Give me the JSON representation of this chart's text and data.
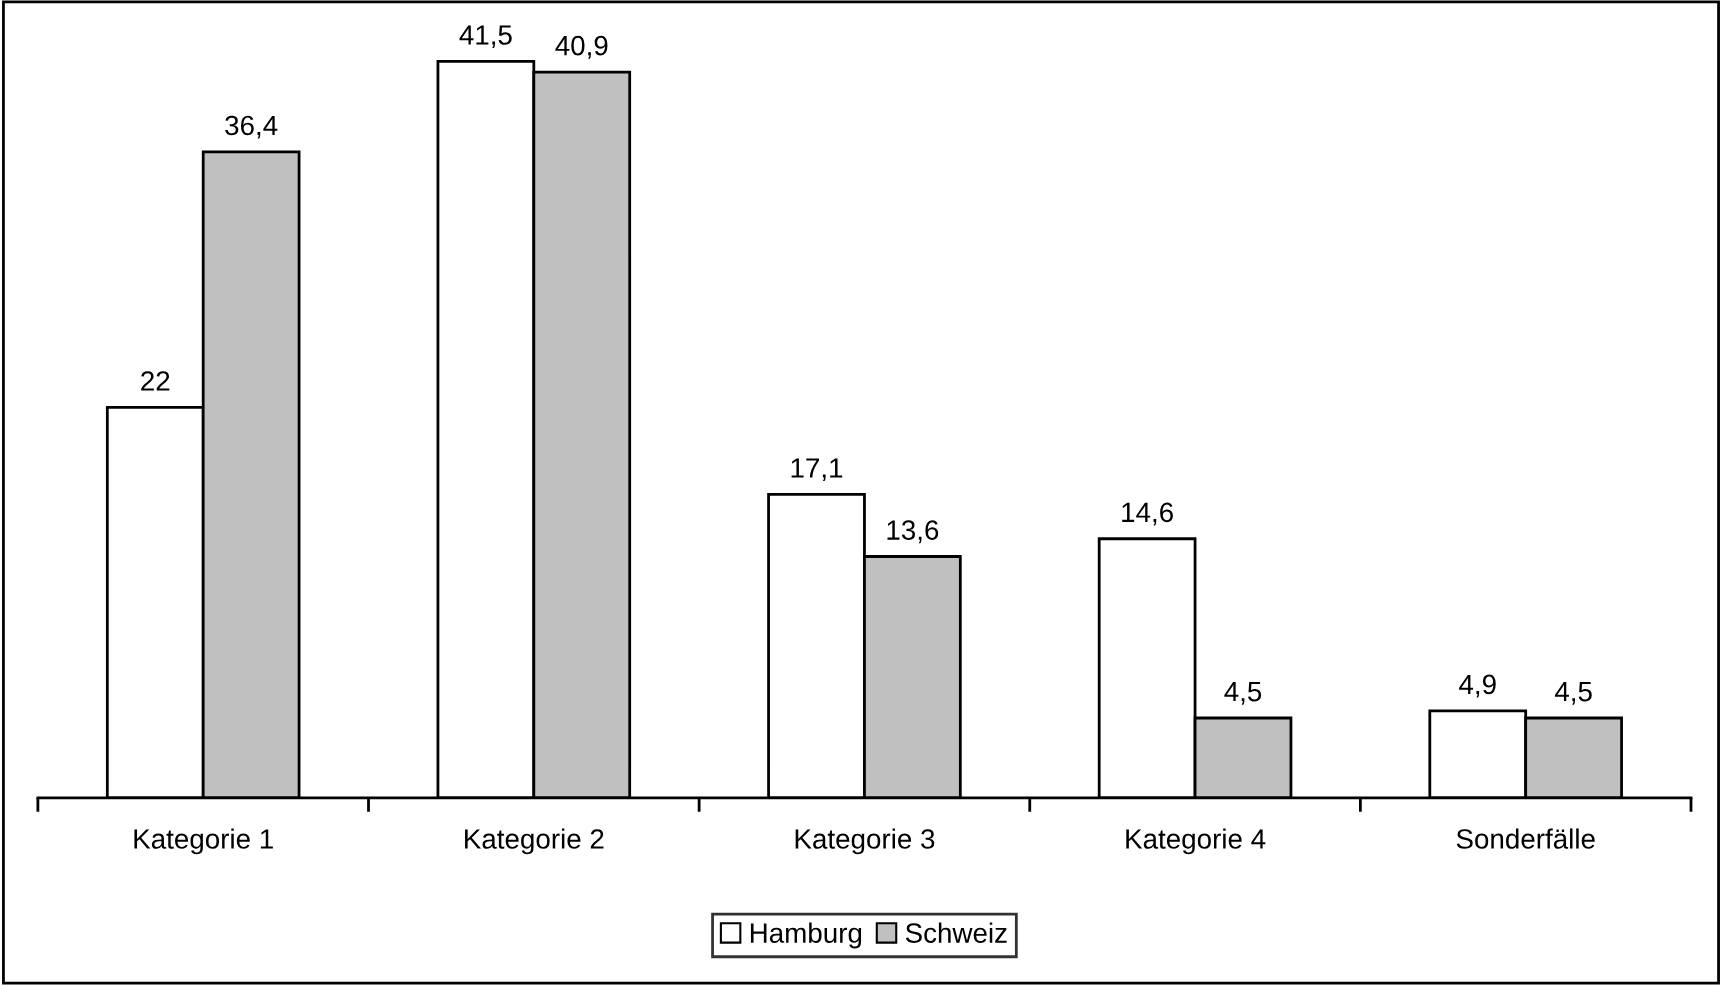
{
  "chart_data": {
    "type": "bar",
    "categories": [
      "Kategorie 1",
      "Kategorie 2",
      "Kategorie 3",
      "Kategorie 4",
      "Sonderfälle"
    ],
    "series": [
      {
        "name": "Hamburg",
        "color": "#ffffff",
        "values": [
          22,
          41.5,
          17.1,
          14.6,
          4.9
        ],
        "value_labels": [
          "22",
          "41,5",
          "17,1",
          "14,6",
          "4,9"
        ]
      },
      {
        "name": "Schweiz",
        "color": "#c0c0c0",
        "values": [
          36.4,
          40.9,
          13.6,
          4.5,
          4.5
        ],
        "value_labels": [
          "36,4",
          "40,9",
          "13,6",
          "4,5",
          "4,5"
        ]
      }
    ],
    "legend": "bottom",
    "tick_labels": "x"
  }
}
